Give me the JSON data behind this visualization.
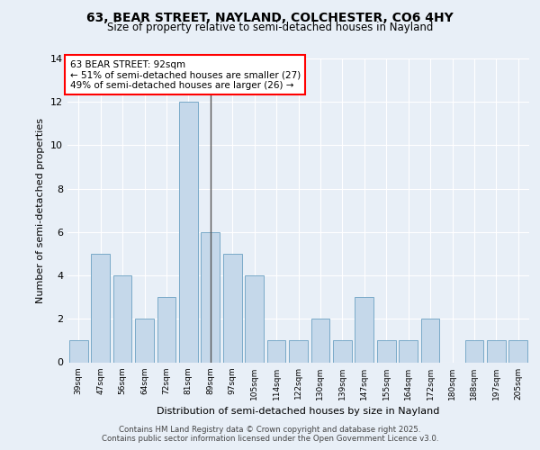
{
  "title1": "63, BEAR STREET, NAYLAND, COLCHESTER, CO6 4HY",
  "title2": "Size of property relative to semi-detached houses in Nayland",
  "xlabel": "Distribution of semi-detached houses by size in Nayland",
  "ylabel": "Number of semi-detached properties",
  "categories": [
    "39sqm",
    "47sqm",
    "56sqm",
    "64sqm",
    "72sqm",
    "81sqm",
    "89sqm",
    "97sqm",
    "105sqm",
    "114sqm",
    "122sqm",
    "130sqm",
    "139sqm",
    "147sqm",
    "155sqm",
    "164sqm",
    "172sqm",
    "180sqm",
    "188sqm",
    "197sqm",
    "205sqm"
  ],
  "values": [
    1,
    5,
    4,
    2,
    3,
    12,
    6,
    5,
    4,
    1,
    1,
    2,
    1,
    3,
    1,
    1,
    2,
    0,
    1,
    1,
    1
  ],
  "highlight_index": 6,
  "bar_color": "#c5d8ea",
  "bar_edge_color": "#7aaac8",
  "background_color": "#e8eff7",
  "plot_bg_color": "#e8eff7",
  "annotation_text": "63 BEAR STREET: 92sqm\n← 51% of semi-detached houses are smaller (27)\n49% of semi-detached houses are larger (26) →",
  "annotation_box_color": "white",
  "annotation_box_edge": "red",
  "highlight_line_color": "#555555",
  "ylim": [
    0,
    14
  ],
  "yticks": [
    0,
    2,
    4,
    6,
    8,
    10,
    12,
    14
  ],
  "footer_line1": "Contains HM Land Registry data © Crown copyright and database right 2025.",
  "footer_line2": "Contains public sector information licensed under the Open Government Licence v3.0."
}
